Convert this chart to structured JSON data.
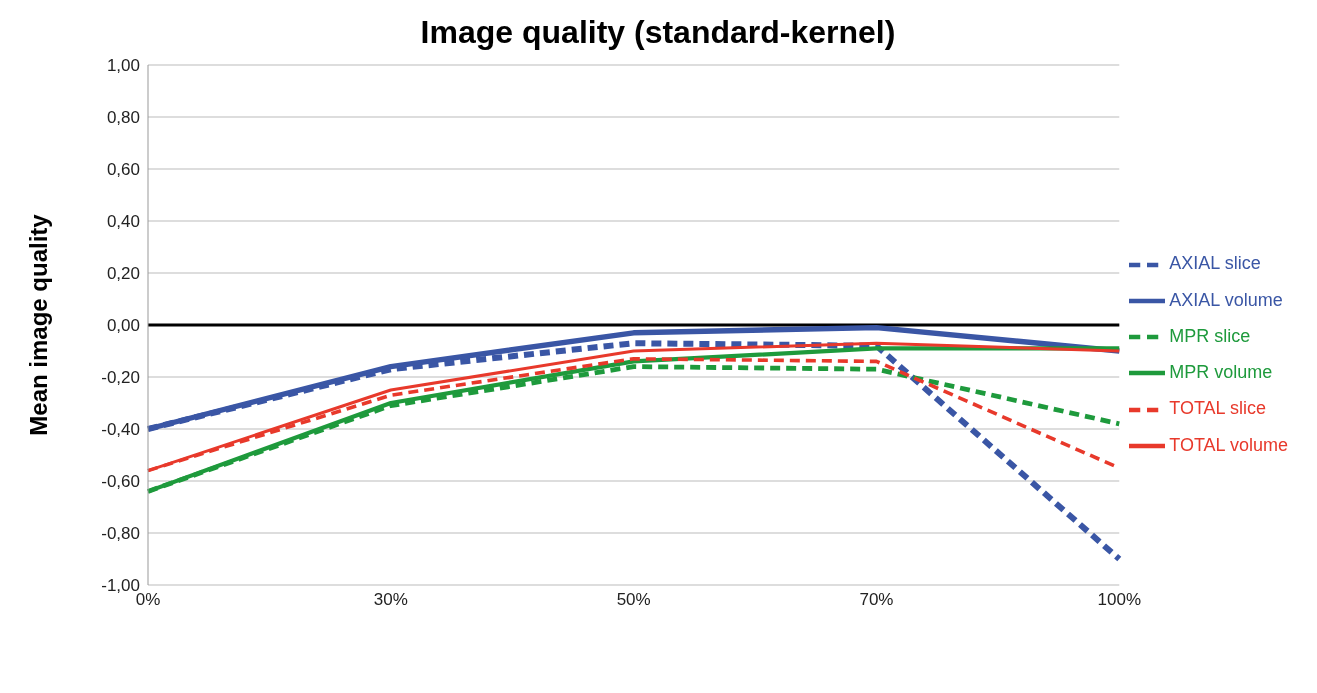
{
  "chart_data": {
    "type": "line",
    "title": "Image quality (standard-kernel)",
    "ylabel": "Mean image quality",
    "categories": [
      "0%",
      "30%",
      "50%",
      "70%",
      "100%"
    ],
    "series": [
      {
        "name": "AXIAL slice",
        "color": "#3a56a5",
        "line_style": "dashed",
        "values": [
          -0.4,
          -0.17,
          -0.07,
          -0.08,
          -0.9
        ]
      },
      {
        "name": "AXIAL volume",
        "color": "#3a56a5",
        "line_style": "solid",
        "values": [
          -0.4,
          -0.16,
          -0.03,
          -0.01,
          -0.1
        ]
      },
      {
        "name": "MPR slice",
        "color": "#1e9a3c",
        "line_style": "dashed",
        "values": [
          -0.64,
          -0.31,
          -0.16,
          -0.17,
          -0.38
        ]
      },
      {
        "name": "MPR volume",
        "color": "#1e9a3c",
        "line_style": "solid",
        "values": [
          -0.64,
          -0.3,
          -0.14,
          -0.09,
          -0.09
        ]
      },
      {
        "name": "TOTAL slice",
        "color": "#e8392b",
        "line_style": "dashed",
        "values": [
          -0.56,
          -0.27,
          -0.13,
          -0.14,
          -0.55
        ]
      },
      {
        "name": "TOTAL volume",
        "color": "#e8392b",
        "line_style": "solid",
        "values": [
          -0.56,
          -0.25,
          -0.1,
          -0.07,
          -0.1
        ]
      }
    ],
    "ylim": [
      -1,
      1
    ],
    "yticks": [
      {
        "value": -1,
        "label": "-1,00"
      },
      {
        "value": -0.8,
        "label": "-0,80"
      },
      {
        "value": -0.6,
        "label": "-0,60"
      },
      {
        "value": -0.4,
        "label": "-0,40"
      },
      {
        "value": -0.2,
        "label": "-0,20"
      },
      {
        "value": 0,
        "label": "0,00"
      },
      {
        "value": 0.2,
        "label": "0,20"
      },
      {
        "value": 0.4,
        "label": "0,40"
      },
      {
        "value": 0.6,
        "label": "0,60"
      },
      {
        "value": 0.8,
        "label": "0,80"
      },
      {
        "value": 1,
        "label": "1,00"
      }
    ],
    "ref_lines": [
      {
        "axis": "y",
        "value": 0,
        "color": "#000000"
      }
    ],
    "grid": "y",
    "legend": "right",
    "marker": "none"
  }
}
